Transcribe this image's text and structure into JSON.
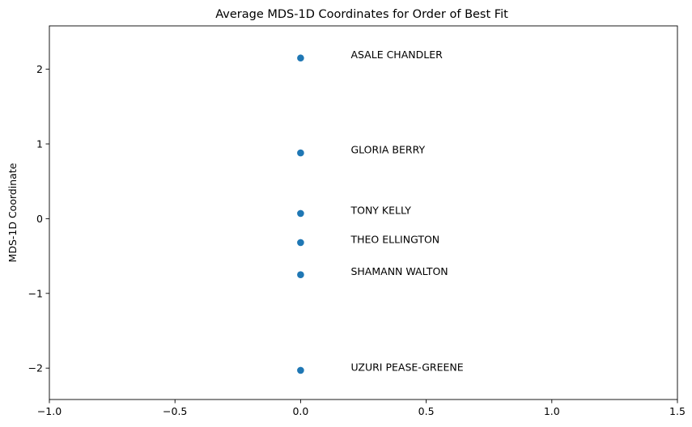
{
  "chart_data": {
    "type": "scatter",
    "title": "Average MDS-1D Coordinates for Order of Best Fit",
    "xlabel": "",
    "ylabel": "MDS-1D Coordinate",
    "xlim": [
      -1.0,
      1.5
    ],
    "ylim": [
      -2.42,
      2.58
    ],
    "xticks": [
      -1.0,
      -0.5,
      0.0,
      0.5,
      1.0,
      1.5
    ],
    "xtick_labels": [
      "−1.0",
      "−0.5",
      "0.0",
      "0.5",
      "1.0",
      "1.5"
    ],
    "yticks": [
      2,
      1,
      0,
      -1,
      -2
    ],
    "ytick_labels": [
      "2",
      "1",
      "0",
      "−1",
      "−2"
    ],
    "grid": false,
    "marker_color": "#1f77b4",
    "points": [
      {
        "x": 0.0,
        "y": 2.15,
        "label": "ASALE CHANDLER"
      },
      {
        "x": 0.0,
        "y": 0.88,
        "label": "GLORIA BERRY"
      },
      {
        "x": 0.0,
        "y": 0.07,
        "label": "TONY KELLY"
      },
      {
        "x": 0.0,
        "y": -0.32,
        "label": "THEO ELLINGTON"
      },
      {
        "x": 0.0,
        "y": -0.75,
        "label": "SHAMANN WALTON"
      },
      {
        "x": 0.0,
        "y": -2.03,
        "label": "UZURI PEASE-GREENE"
      }
    ]
  }
}
